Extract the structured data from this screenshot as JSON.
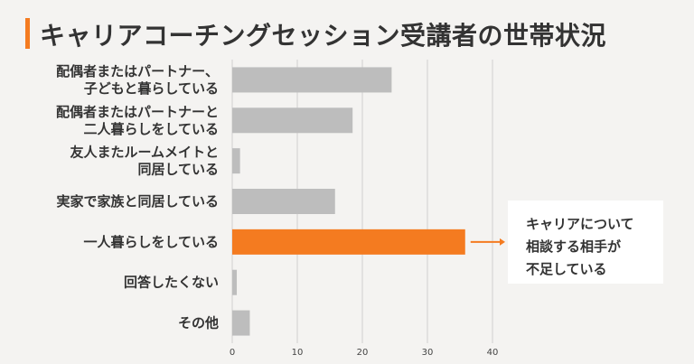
{
  "title": "キャリアコーチングセッション受講者の世帯状況",
  "colors": {
    "accent": "#f47b20",
    "bar_default": "#bdbdbd",
    "bar_highlight": "#f47b20",
    "grid": "#cfcfcf",
    "background": "#f4f3f1"
  },
  "chart_data": {
    "type": "bar",
    "orientation": "horizontal",
    "categories": [
      [
        "配偶者またはパートナー、",
        "子どもと暮らしている"
      ],
      [
        "配偶者またはパートナーと",
        "二人暮らしをしている"
      ],
      [
        "友人またルームメイトと",
        "同居している"
      ],
      [
        "実家で家族と同居している"
      ],
      [
        "一人暮らしをしている"
      ],
      [
        "回答したくない"
      ],
      [
        "その他"
      ]
    ],
    "values": [
      24.5,
      18.5,
      1.2,
      15.8,
      35.8,
      0.7,
      2.7
    ],
    "highlight_index": 4,
    "xlim": [
      0,
      40
    ],
    "xticks": [
      0,
      10,
      20,
      30,
      40
    ],
    "grid": "vertical"
  },
  "callout": {
    "lines": [
      "キャリアについて",
      "相談する相手が",
      "不足している"
    ]
  }
}
